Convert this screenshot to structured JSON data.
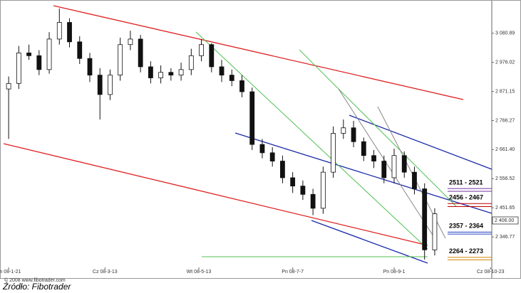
{
  "chart_data": {
    "type": "candlestick",
    "x": [
      0,
      4,
      8,
      12,
      16,
      20,
      24,
      28,
      32,
      36,
      40,
      44,
      48,
      52,
      56,
      60,
      64,
      68,
      72,
      76,
      80,
      84,
      88,
      92,
      96,
      100,
      104,
      108,
      112,
      116,
      120,
      124,
      128,
      132,
      136,
      140,
      144,
      148,
      152,
      156,
      160,
      164,
      168
    ],
    "open": [
      2880,
      2900,
      3010,
      3000,
      2950,
      3060,
      3120,
      3050,
      2990,
      2930,
      2860,
      2930,
      3040,
      3060,
      2960,
      2920,
      2940,
      2930,
      2950,
      3000,
      3040,
      2960,
      2930,
      2910,
      2870,
      2680,
      2650,
      2620,
      2560,
      2530,
      2500,
      2450,
      2580,
      2720,
      2740,
      2690,
      2640,
      2620,
      2560,
      2640,
      2580,
      2520,
      2300
    ],
    "close": [
      2900,
      3010,
      3000,
      2950,
      3060,
      3120,
      3050,
      2990,
      2930,
      2860,
      2930,
      3040,
      3060,
      2960,
      2920,
      2940,
      2930,
      2950,
      3000,
      3040,
      2960,
      2930,
      2910,
      2870,
      2680,
      2650,
      2620,
      2560,
      2530,
      2500,
      2450,
      2580,
      2720,
      2740,
      2690,
      2640,
      2620,
      2560,
      2640,
      2580,
      2520,
      2300,
      2430
    ],
    "high": [
      2925,
      3035,
      3040,
      3020,
      3085,
      3170,
      3135,
      3070,
      3010,
      2955,
      2950,
      3065,
      3090,
      3075,
      2980,
      2965,
      2955,
      2975,
      3025,
      3060,
      3045,
      2985,
      2950,
      2930,
      2885,
      2700,
      2670,
      2640,
      2580,
      2550,
      2520,
      2600,
      2745,
      2770,
      2765,
      2705,
      2660,
      2640,
      2665,
      2655,
      2600,
      2540,
      2450
    ],
    "low": [
      2700,
      2880,
      2985,
      2930,
      2935,
      3040,
      3030,
      2970,
      2905,
      2770,
      2840,
      2910,
      3020,
      2940,
      2900,
      2900,
      2910,
      2910,
      2930,
      2980,
      2940,
      2905,
      2890,
      2850,
      2660,
      2630,
      2600,
      2540,
      2505,
      2480,
      2425,
      2430,
      2560,
      2700,
      2670,
      2620,
      2595,
      2540,
      2540,
      2560,
      2500,
      2265,
      2280
    ],
    "xlim": [
      -2,
      190.5
    ],
    "xticks": [
      {
        "value": 0,
        "label": "Pn 08-1-21"
      },
      {
        "value": 38,
        "label": "Cz 08-3-13"
      },
      {
        "value": 75,
        "label": "Wt 08-5-13"
      },
      {
        "value": 112,
        "label": "Pn 08-7-7"
      },
      {
        "value": 152,
        "label": "Pn 08-9-1"
      },
      {
        "value": 190,
        "label": "Cz 08-10-23"
      }
    ],
    "ylim": [
      2247,
      3188
    ],
    "yticks": [
      {
        "value": 3080.89,
        "label": "3 080.89"
      },
      {
        "value": 2976.02,
        "label": "2 976.02"
      },
      {
        "value": 2871.15,
        "label": "2 871.15"
      },
      {
        "value": 2766.27,
        "label": "2 766.27"
      },
      {
        "value": 2661.4,
        "label": "2 661.40"
      },
      {
        "value": 2556.52,
        "label": "2 556.52"
      },
      {
        "value": 2451.65,
        "label": "2 451.65"
      },
      {
        "value": 2346.77,
        "label": "2 346.77"
      }
    ],
    "last_price": {
      "value": 2406,
      "label": "2 406.00"
    },
    "zones": [
      {
        "label": "2511 - 2521",
        "low": 2511,
        "high": 2521,
        "color": "#7030a0"
      },
      {
        "label": "2456 - 2467",
        "low": 2456,
        "high": 2467,
        "color": "#c00000"
      },
      {
        "label": "2357 - 2364",
        "low": 2357,
        "high": 2364,
        "color": "#1f3fbf"
      },
      {
        "label": "2264 - 2273",
        "low": 2264,
        "high": 2273,
        "color": "#d08000"
      }
    ],
    "up_color": "#ffffff",
    "down_color": "#111111",
    "copyright": "© 2008 www.fibotrader.com",
    "source": "Źródło: Fibotrader"
  }
}
